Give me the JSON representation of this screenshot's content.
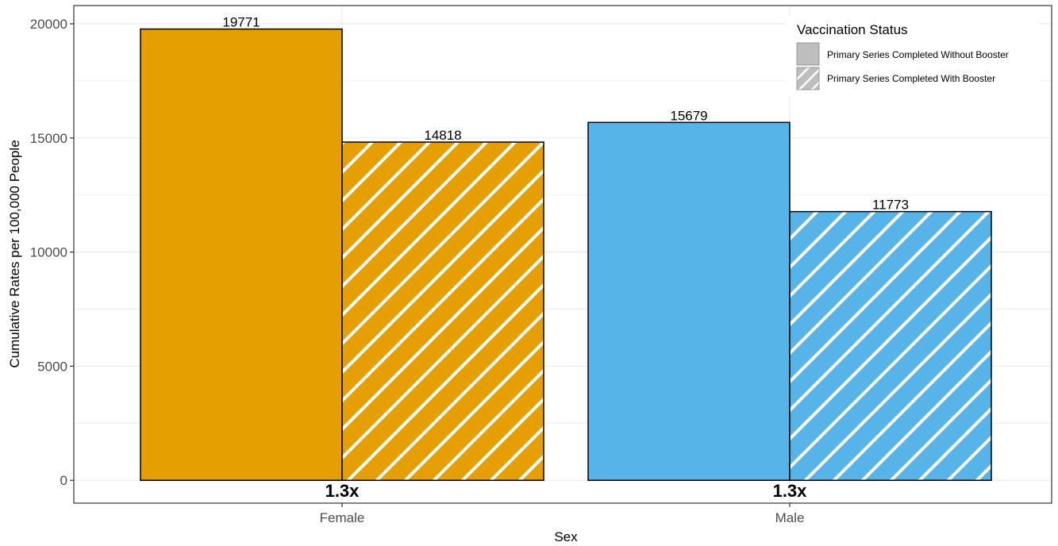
{
  "chart_data": {
    "type": "bar",
    "categories": [
      "Female",
      "Male"
    ],
    "series": [
      {
        "name": "Primary Series Completed Without Booster",
        "values": [
          19771,
          15679
        ]
      },
      {
        "name": "Primary Series Completed With Booster",
        "values": [
          14818,
          11773
        ]
      }
    ],
    "data_labels": [
      [
        "19771",
        "14818"
      ],
      [
        "15679",
        "11773"
      ]
    ],
    "ratio_labels": [
      "1.3x",
      "1.3x"
    ],
    "xlabel": "Sex",
    "ylabel": "Cumulative Rates per 100,000 People",
    "ylim": [
      -1000,
      20800
    ],
    "yticks": [
      0,
      5000,
      10000,
      15000,
      20000
    ],
    "ytick_labels": [
      "0",
      "5000",
      "10000",
      "15000",
      "20000"
    ],
    "grid": true,
    "legend": {
      "title": "Vaccination Status",
      "placement": "top-right",
      "entries": [
        "Primary Series Completed Without Booster",
        "Primary Series Completed With Booster"
      ],
      "patterns": [
        "solid",
        "stripe"
      ]
    },
    "colors": {
      "Female": "#E69F00",
      "Male": "#56B4E9"
    },
    "bar_outline": "#000000",
    "stripe_color": "#ffffff"
  }
}
